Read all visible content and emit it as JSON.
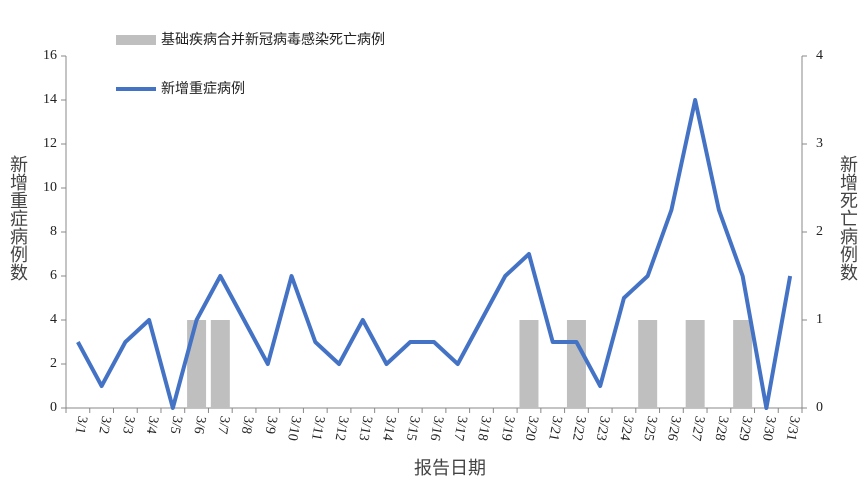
{
  "chart_data": {
    "type": "bar-line",
    "categories": [
      "3/1",
      "3/2",
      "3/3",
      "3/4",
      "3/5",
      "3/6",
      "3/7",
      "3/8",
      "3/9",
      "3/10",
      "3/11",
      "3/12",
      "3/13",
      "3/14",
      "3/15",
      "3/16",
      "3/17",
      "3/18",
      "3/19",
      "3/20",
      "3/21",
      "3/22",
      "3/23",
      "3/24",
      "3/25",
      "3/26",
      "3/27",
      "3/28",
      "3/29",
      "3/30",
      "3/31"
    ],
    "series": [
      {
        "name": "基础疾病合并新冠病毒感染死亡病例",
        "type": "bar",
        "axis": "y2",
        "color": "#bfbfbf",
        "values": [
          0,
          0,
          0,
          0,
          0,
          1,
          1,
          0,
          0,
          0,
          0,
          0,
          0,
          0,
          0,
          0,
          0,
          0,
          0,
          1,
          0,
          1,
          0,
          0,
          1,
          0,
          1,
          0,
          1,
          0,
          0
        ]
      },
      {
        "name": "新增重症病例",
        "type": "line",
        "axis": "y",
        "color": "#4472c4",
        "values": [
          3,
          1,
          3,
          4,
          0,
          4,
          6,
          4,
          2,
          6,
          3,
          2,
          4,
          2,
          3,
          3,
          2,
          4,
          6,
          7,
          3,
          3,
          1,
          5,
          6,
          9,
          14,
          9,
          6,
          0,
          6
        ]
      }
    ],
    "ylabel": "新增重症病例数",
    "y2label": "新增死亡病例数",
    "xlabel": "报告日期",
    "ylim": [
      0,
      16
    ],
    "yticks": [
      0,
      2,
      4,
      6,
      8,
      10,
      12,
      14,
      16
    ],
    "y2lim": [
      0,
      4
    ],
    "y2ticks": [
      0,
      1,
      2,
      3,
      4
    ]
  }
}
